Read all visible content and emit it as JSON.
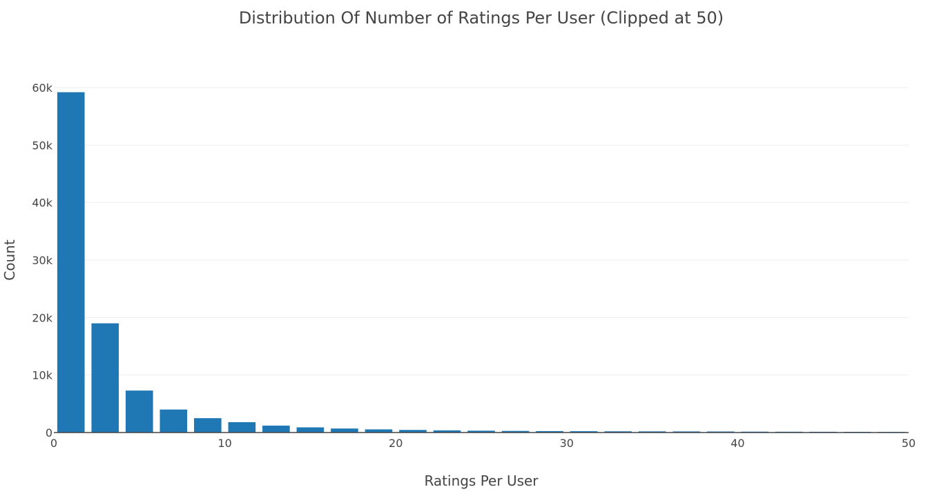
{
  "chart_data": {
    "type": "bar",
    "title": "Distribution Of Number of Ratings Per User (Clipped at 50)",
    "xlabel": "Ratings Per User",
    "ylabel": "Count",
    "xlim": [
      0,
      50
    ],
    "ylim": [
      0,
      60000
    ],
    "grid": true,
    "x_ticks": [
      {
        "value": 0,
        "label": "0"
      },
      {
        "value": 10,
        "label": "10"
      },
      {
        "value": 20,
        "label": "20"
      },
      {
        "value": 30,
        "label": "30"
      },
      {
        "value": 40,
        "label": "40"
      },
      {
        "value": 50,
        "label": "50"
      }
    ],
    "y_ticks": [
      {
        "value": 0,
        "label": "0"
      },
      {
        "value": 10000,
        "label": "10k"
      },
      {
        "value": 20000,
        "label": "20k"
      },
      {
        "value": 30000,
        "label": "30k"
      },
      {
        "value": 40000,
        "label": "40k"
      },
      {
        "value": 50000,
        "label": "50k"
      },
      {
        "value": 60000,
        "label": "60k"
      }
    ],
    "bar_color": "#1f77b4",
    "bins": [
      {
        "start": 0,
        "end": 2,
        "count": 59200
      },
      {
        "start": 2,
        "end": 4,
        "count": 19000
      },
      {
        "start": 4,
        "end": 6,
        "count": 7300
      },
      {
        "start": 6,
        "end": 8,
        "count": 4000
      },
      {
        "start": 8,
        "end": 10,
        "count": 2500
      },
      {
        "start": 10,
        "end": 12,
        "count": 1800
      },
      {
        "start": 12,
        "end": 14,
        "count": 1200
      },
      {
        "start": 14,
        "end": 16,
        "count": 900
      },
      {
        "start": 16,
        "end": 18,
        "count": 700
      },
      {
        "start": 18,
        "end": 20,
        "count": 550
      },
      {
        "start": 20,
        "end": 22,
        "count": 450
      },
      {
        "start": 22,
        "end": 24,
        "count": 380
      },
      {
        "start": 24,
        "end": 26,
        "count": 320
      },
      {
        "start": 26,
        "end": 28,
        "count": 280
      },
      {
        "start": 28,
        "end": 30,
        "count": 250
      },
      {
        "start": 30,
        "end": 32,
        "count": 230
      },
      {
        "start": 32,
        "end": 34,
        "count": 210
      },
      {
        "start": 34,
        "end": 36,
        "count": 200
      },
      {
        "start": 36,
        "end": 38,
        "count": 190
      },
      {
        "start": 38,
        "end": 40,
        "count": 180
      },
      {
        "start": 40,
        "end": 42,
        "count": 150
      },
      {
        "start": 42,
        "end": 44,
        "count": 140
      },
      {
        "start": 44,
        "end": 46,
        "count": 130
      },
      {
        "start": 46,
        "end": 48,
        "count": 120
      },
      {
        "start": 48,
        "end": 50,
        "count": 110
      }
    ]
  }
}
